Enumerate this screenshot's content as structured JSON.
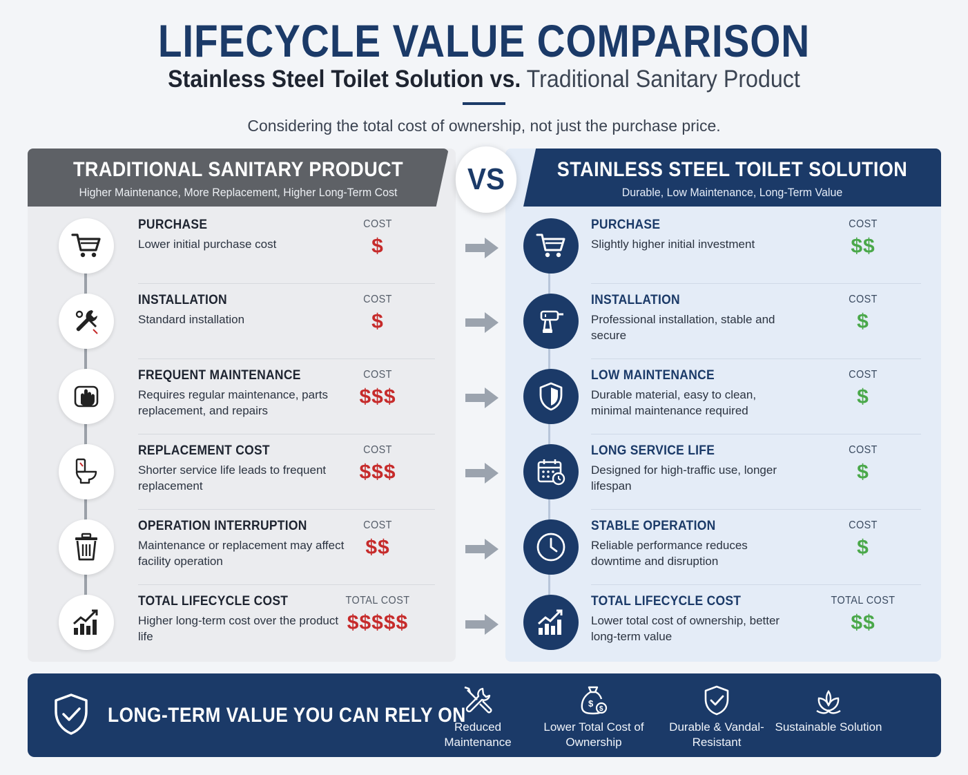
{
  "header": {
    "title": "LIFECYCLE VALUE COMPARISON",
    "subtitle_strong": "Stainless Steel Toilet Solution vs.",
    "subtitle_light": "Traditional Sanitary Product",
    "tagline": "Considering the total cost of ownership, not just the purchase price."
  },
  "left": {
    "title": "TRADITIONAL SANITARY PRODUCT",
    "subtitle": "Higher Maintenance, More Replacement, Higher Long-Term Cost",
    "rows": [
      {
        "icon": "cart-icon",
        "title": "PURCHASE",
        "desc": "Lower initial purchase cost",
        "cost_label": "COST",
        "cost": "$"
      },
      {
        "icon": "wrench-icon",
        "title": "INSTALLATION",
        "desc": "Standard installation",
        "cost_label": "COST",
        "cost": "$"
      },
      {
        "icon": "hand-cleaning-icon",
        "title": "FREQUENT MAINTENANCE",
        "desc": "Requires regular maintenance, parts replacement, and repairs",
        "cost_label": "COST",
        "cost": "$$$"
      },
      {
        "icon": "toilet-icon",
        "title": "REPLACEMENT COST",
        "desc": "Shorter service life leads to frequent replacement",
        "cost_label": "COST",
        "cost": "$$$"
      },
      {
        "icon": "trash-icon",
        "title": "OPERATION INTERRUPTION",
        "desc": "Maintenance or replacement may affect facility operation",
        "cost_label": "COST",
        "cost": "$$"
      },
      {
        "icon": "chart-growth-icon",
        "title": "TOTAL LIFECYCLE COST",
        "desc": "Higher long-term cost over the product life",
        "cost_label": "TOTAL COST",
        "cost": "$$$$$"
      }
    ]
  },
  "vs": "VS",
  "right": {
    "title": "STAINLESS STEEL TOILET SOLUTION",
    "subtitle": "Durable, Low Maintenance, Long-Term Value",
    "rows": [
      {
        "icon": "cart-icon",
        "title": "PURCHASE",
        "desc": "Slightly higher initial investment",
        "cost_label": "COST",
        "cost": "$$"
      },
      {
        "icon": "drill-icon",
        "title": "INSTALLATION",
        "desc": "Professional installation, stable and secure",
        "cost_label": "COST",
        "cost": "$"
      },
      {
        "icon": "shield-icon",
        "title": "LOW MAINTENANCE",
        "desc": "Durable material, easy to clean, minimal maintenance required",
        "cost_label": "COST",
        "cost": "$"
      },
      {
        "icon": "calendar-clock-icon",
        "title": "LONG SERVICE LIFE",
        "desc": "Designed for high-traffic use, longer lifespan",
        "cost_label": "COST",
        "cost": "$"
      },
      {
        "icon": "clock-icon",
        "title": "STABLE OPERATION",
        "desc": "Reliable performance reduces downtime and disruption",
        "cost_label": "COST",
        "cost": "$"
      },
      {
        "icon": "chart-growth-icon",
        "title": "TOTAL LIFECYCLE COST",
        "desc": "Lower total cost of ownership, better long-term value",
        "cost_label": "TOTAL COST",
        "cost": "$$"
      }
    ]
  },
  "footer": {
    "title": "LONG-TERM VALUE YOU CAN RELY ON",
    "features": [
      {
        "icon": "tools-icon",
        "label": "Reduced Maintenance"
      },
      {
        "icon": "money-bag-icon",
        "label": "Lower Total Cost of Ownership"
      },
      {
        "icon": "shield-check-icon",
        "label": "Durable & Vandal-Resistant"
      },
      {
        "icon": "leaf-icon",
        "label": "Sustainable Solution"
      }
    ]
  },
  "colors": {
    "navy": "#1b3a68",
    "gray_header": "#5e6166",
    "cost_red": "#c62b2b",
    "cost_green": "#4aa84a"
  }
}
